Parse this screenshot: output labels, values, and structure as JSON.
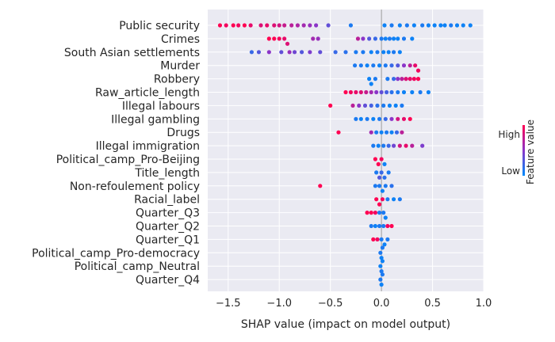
{
  "chart_data": {
    "type": "scatter",
    "subtype": "shap-beeswarm",
    "xlabel": "SHAP value (impact on model output)",
    "xlim": [
      -1.7,
      1.0
    ],
    "xticks": [
      -1.5,
      -1.0,
      -0.5,
      0.0,
      0.5,
      1.0
    ],
    "xtick_labels": [
      "−1.5",
      "−1.0",
      "−0.5",
      "0.0",
      "0.5",
      "1.0"
    ],
    "grid": true,
    "legend_placement": "right",
    "colorbar": {
      "label": "Feature value",
      "high_label": "High",
      "low_label": "Low",
      "high_color": "#ff0052",
      "low_color": "#008bfb"
    },
    "colors": {
      "background": "#eaeaf2",
      "grid": "#ffffff",
      "text": "#262626"
    },
    "features": [
      {
        "name": "Public security",
        "points": [
          {
            "x": -1.58,
            "v": 1
          },
          {
            "x": -1.52,
            "v": 0.95
          },
          {
            "x": -1.45,
            "v": 1
          },
          {
            "x": -1.4,
            "v": 0.95
          },
          {
            "x": -1.34,
            "v": 1
          },
          {
            "x": -1.28,
            "v": 0.9
          },
          {
            "x": -1.18,
            "v": 0.85
          },
          {
            "x": -1.12,
            "v": 0.9
          },
          {
            "x": -1.05,
            "v": 0.85
          },
          {
            "x": -1.0,
            "v": 0.8
          },
          {
            "x": -0.95,
            "v": 0.75
          },
          {
            "x": -0.88,
            "v": 0.7
          },
          {
            "x": -0.82,
            "v": 0.65
          },
          {
            "x": -0.76,
            "v": 0.6
          },
          {
            "x": -0.7,
            "v": 0.55
          },
          {
            "x": -0.64,
            "v": 0.5
          },
          {
            "x": -0.52,
            "v": 0.35
          },
          {
            "x": -0.3,
            "v": 0.1
          },
          {
            "x": 0.03,
            "v": 0.05
          },
          {
            "x": 0.1,
            "v": 0.1
          },
          {
            "x": 0.18,
            "v": 0.05
          },
          {
            "x": 0.25,
            "v": 0.1
          },
          {
            "x": 0.32,
            "v": 0.05
          },
          {
            "x": 0.4,
            "v": 0.1
          },
          {
            "x": 0.46,
            "v": 0.05
          },
          {
            "x": 0.52,
            "v": 0.05
          },
          {
            "x": 0.58,
            "v": 0.05
          },
          {
            "x": 0.62,
            "v": 0.05
          },
          {
            "x": 0.68,
            "v": 0.1
          },
          {
            "x": 0.74,
            "v": 0.05
          },
          {
            "x": 0.8,
            "v": 0.05
          },
          {
            "x": 0.87,
            "v": 0.05
          }
        ]
      },
      {
        "name": "Crimes",
        "points": [
          {
            "x": -1.1,
            "v": 1
          },
          {
            "x": -1.05,
            "v": 1
          },
          {
            "x": -1.0,
            "v": 0.95
          },
          {
            "x": -0.95,
            "v": 0.9
          },
          {
            "x": -0.92,
            "v": 0.85
          },
          {
            "x": -0.67,
            "v": 0.6
          },
          {
            "x": -0.62,
            "v": 0.55
          },
          {
            "x": -0.23,
            "v": 0.7
          },
          {
            "x": -0.18,
            "v": 0.5
          },
          {
            "x": -0.12,
            "v": 0.3
          },
          {
            "x": -0.06,
            "v": 0.2
          },
          {
            "x": 0.0,
            "v": 0.1
          },
          {
            "x": 0.04,
            "v": 0.05
          },
          {
            "x": 0.08,
            "v": 0.1
          },
          {
            "x": 0.12,
            "v": 0.05
          },
          {
            "x": 0.16,
            "v": 0.05
          },
          {
            "x": 0.22,
            "v": 0.1
          },
          {
            "x": 0.3,
            "v": 0.05
          }
        ]
      },
      {
        "name": "South Asian settlements",
        "points": [
          {
            "x": -1.27,
            "v": 0.2
          },
          {
            "x": -1.2,
            "v": 0.3
          },
          {
            "x": -1.1,
            "v": 0.5
          },
          {
            "x": -0.98,
            "v": 0.35
          },
          {
            "x": -0.9,
            "v": 0.55
          },
          {
            "x": -0.85,
            "v": 0.4
          },
          {
            "x": -0.78,
            "v": 0.3
          },
          {
            "x": -0.7,
            "v": 0.45
          },
          {
            "x": -0.6,
            "v": 0.35
          },
          {
            "x": -0.45,
            "v": 0.2
          },
          {
            "x": -0.35,
            "v": 0.15
          },
          {
            "x": -0.25,
            "v": 0.1
          },
          {
            "x": -0.18,
            "v": 0.1
          },
          {
            "x": -0.1,
            "v": 0.05
          },
          {
            "x": -0.04,
            "v": 0.1
          },
          {
            "x": 0.02,
            "v": 0.05
          },
          {
            "x": 0.07,
            "v": 0.05
          },
          {
            "x": 0.12,
            "v": 0.1
          },
          {
            "x": 0.18,
            "v": 0.05
          }
        ]
      },
      {
        "name": "Murder",
        "points": [
          {
            "x": -0.26,
            "v": 0.1
          },
          {
            "x": -0.2,
            "v": 0.1
          },
          {
            "x": -0.14,
            "v": 0.05
          },
          {
            "x": -0.08,
            "v": 0.1
          },
          {
            "x": -0.02,
            "v": 0.05
          },
          {
            "x": 0.04,
            "v": 0.1
          },
          {
            "x": 0.1,
            "v": 0.2
          },
          {
            "x": 0.16,
            "v": 0.3
          },
          {
            "x": 0.22,
            "v": 0.5
          },
          {
            "x": 0.28,
            "v": 0.7
          },
          {
            "x": 0.33,
            "v": 0.9
          },
          {
            "x": 0.36,
            "v": 0.95
          }
        ]
      },
      {
        "name": "Robbery",
        "points": [
          {
            "x": -0.12,
            "v": 0.05
          },
          {
            "x": -0.1,
            "v": 0.05
          },
          {
            "x": -0.06,
            "v": 0.1
          },
          {
            "x": 0.06,
            "v": 0.1
          },
          {
            "x": 0.12,
            "v": 0.2
          },
          {
            "x": 0.16,
            "v": 0.5
          },
          {
            "x": 0.2,
            "v": 0.7
          },
          {
            "x": 0.24,
            "v": 0.85
          },
          {
            "x": 0.28,
            "v": 0.9
          },
          {
            "x": 0.32,
            "v": 0.95
          },
          {
            "x": 0.36,
            "v": 1
          }
        ]
      },
      {
        "name": "Raw_article_length",
        "points": [
          {
            "x": -0.35,
            "v": 1
          },
          {
            "x": -0.3,
            "v": 0.95
          },
          {
            "x": -0.25,
            "v": 0.9
          },
          {
            "x": -0.2,
            "v": 0.85
          },
          {
            "x": -0.15,
            "v": 0.75
          },
          {
            "x": -0.1,
            "v": 0.6
          },
          {
            "x": -0.05,
            "v": 0.5
          },
          {
            "x": 0.0,
            "v": 0.35
          },
          {
            "x": 0.05,
            "v": 0.25
          },
          {
            "x": 0.1,
            "v": 0.15
          },
          {
            "x": 0.16,
            "v": 0.1
          },
          {
            "x": 0.22,
            "v": 0.05
          },
          {
            "x": 0.3,
            "v": 0.05
          },
          {
            "x": 0.38,
            "v": 0.1
          },
          {
            "x": 0.46,
            "v": 0.05
          }
        ]
      },
      {
        "name": "Illegal labours",
        "points": [
          {
            "x": -0.5,
            "v": 1
          },
          {
            "x": -0.28,
            "v": 0.7
          },
          {
            "x": -0.22,
            "v": 0.5
          },
          {
            "x": -0.16,
            "v": 0.35
          },
          {
            "x": -0.1,
            "v": 0.25
          },
          {
            "x": -0.04,
            "v": 0.15
          },
          {
            "x": 0.02,
            "v": 0.1
          },
          {
            "x": 0.08,
            "v": 0.05
          },
          {
            "x": 0.14,
            "v": 0.05
          },
          {
            "x": 0.2,
            "v": 0.1
          }
        ]
      },
      {
        "name": "Illegal gambling",
        "points": [
          {
            "x": -0.25,
            "v": 0.1
          },
          {
            "x": -0.2,
            "v": 0.05
          },
          {
            "x": -0.14,
            "v": 0.1
          },
          {
            "x": -0.08,
            "v": 0.05
          },
          {
            "x": -0.02,
            "v": 0.1
          },
          {
            "x": 0.04,
            "v": 0.2
          },
          {
            "x": 0.1,
            "v": 0.5
          },
          {
            "x": 0.16,
            "v": 0.8
          },
          {
            "x": 0.22,
            "v": 0.9
          },
          {
            "x": 0.28,
            "v": 1
          }
        ]
      },
      {
        "name": "Drugs",
        "points": [
          {
            "x": -0.42,
            "v": 1
          },
          {
            "x": -0.1,
            "v": 0.6
          },
          {
            "x": -0.05,
            "v": 0.1
          },
          {
            "x": 0.0,
            "v": 0.05
          },
          {
            "x": 0.05,
            "v": 0.1
          },
          {
            "x": 0.1,
            "v": 0.05
          },
          {
            "x": 0.15,
            "v": 0.2
          },
          {
            "x": 0.2,
            "v": 0.7
          }
        ]
      },
      {
        "name": "Illegal immigration",
        "points": [
          {
            "x": -0.08,
            "v": 0.1
          },
          {
            "x": -0.03,
            "v": 0.05
          },
          {
            "x": 0.02,
            "v": 0.1
          },
          {
            "x": 0.07,
            "v": 0.2
          },
          {
            "x": 0.12,
            "v": 0.4
          },
          {
            "x": 0.18,
            "v": 0.8
          },
          {
            "x": 0.24,
            "v": 0.9
          },
          {
            "x": 0.3,
            "v": 0.7
          },
          {
            "x": 0.4,
            "v": 0.45
          }
        ]
      },
      {
        "name": "Political_camp_Pro-Beijing",
        "points": [
          {
            "x": -0.06,
            "v": 1
          },
          {
            "x": -0.03,
            "v": 1
          },
          {
            "x": 0.0,
            "v": 0.95
          },
          {
            "x": 0.03,
            "v": 0.05
          }
        ]
      },
      {
        "name": "Title_length",
        "points": [
          {
            "x": -0.05,
            "v": 0.1
          },
          {
            "x": -0.02,
            "v": 0.3
          },
          {
            "x": 0.0,
            "v": 0.2
          },
          {
            "x": 0.03,
            "v": 0.15
          },
          {
            "x": 0.07,
            "v": 0.1
          }
        ]
      },
      {
        "name": "Non-refoulement policy",
        "points": [
          {
            "x": -0.6,
            "v": 1
          },
          {
            "x": -0.06,
            "v": 0.1
          },
          {
            "x": -0.02,
            "v": 0.1
          },
          {
            "x": 0.01,
            "v": 0.05
          },
          {
            "x": 0.04,
            "v": 0.1
          },
          {
            "x": 0.1,
            "v": 0.15
          }
        ]
      },
      {
        "name": "Racial_label",
        "points": [
          {
            "x": -0.05,
            "v": 1
          },
          {
            "x": -0.02,
            "v": 1
          },
          {
            "x": 0.01,
            "v": 0.95
          },
          {
            "x": 0.06,
            "v": 0.1
          },
          {
            "x": 0.12,
            "v": 0.05
          },
          {
            "x": 0.18,
            "v": 0.1
          }
        ]
      },
      {
        "name": "Quarter_Q3",
        "points": [
          {
            "x": -0.14,
            "v": 1
          },
          {
            "x": -0.1,
            "v": 1
          },
          {
            "x": -0.06,
            "v": 0.95
          },
          {
            "x": -0.02,
            "v": 0.1
          },
          {
            "x": 0.02,
            "v": 0.1
          },
          {
            "x": 0.04,
            "v": 0.05
          }
        ]
      },
      {
        "name": "Quarter_Q2",
        "points": [
          {
            "x": -0.1,
            "v": 0.1
          },
          {
            "x": -0.06,
            "v": 0.05
          },
          {
            "x": -0.02,
            "v": 0.1
          },
          {
            "x": 0.02,
            "v": 0.1
          },
          {
            "x": 0.06,
            "v": 0.95
          },
          {
            "x": 0.1,
            "v": 1
          }
        ]
      },
      {
        "name": "Quarter_Q1",
        "points": [
          {
            "x": -0.08,
            "v": 1
          },
          {
            "x": -0.04,
            "v": 0.95
          },
          {
            "x": 0.0,
            "v": 0.1
          },
          {
            "x": 0.03,
            "v": 0.05
          },
          {
            "x": 0.06,
            "v": 0.1
          }
        ]
      },
      {
        "name": "Political_camp_Pro-democracy",
        "points": [
          {
            "x": -0.01,
            "v": 0.1
          },
          {
            "x": 0.0,
            "v": 0.05
          },
          {
            "x": 0.01,
            "v": 0.1
          }
        ]
      },
      {
        "name": "Political_camp_Neutral",
        "points": [
          {
            "x": -0.01,
            "v": 0.05
          },
          {
            "x": 0.0,
            "v": 0.1
          },
          {
            "x": 0.01,
            "v": 0.05
          }
        ]
      },
      {
        "name": "Quarter_Q4",
        "points": [
          {
            "x": -0.01,
            "v": 0.1
          },
          {
            "x": 0.0,
            "v": 0.05
          },
          {
            "x": 0.01,
            "v": 0.1
          }
        ]
      }
    ]
  }
}
